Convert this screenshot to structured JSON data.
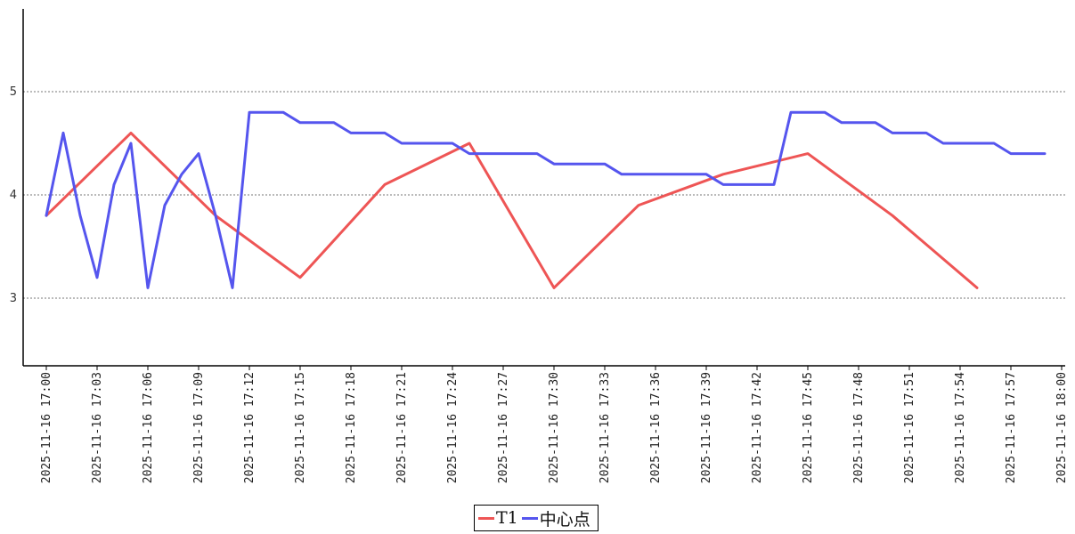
{
  "chart_data": {
    "type": "line",
    "title": "",
    "xlabel": "",
    "ylabel": "",
    "ylim": [
      2.35,
      5.85
    ],
    "yticks": [
      3,
      4,
      5
    ],
    "grid": "horizontal dotted",
    "legend_position": "bottom-center",
    "x_tick_labels": [
      "2025-11-16 17:00",
      "2025-11-16 17:03",
      "2025-11-16 17:06",
      "2025-11-16 17:09",
      "2025-11-16 17:12",
      "2025-11-16 17:15",
      "2025-11-16 17:18",
      "2025-11-16 17:21",
      "2025-11-16 17:24",
      "2025-11-16 17:27",
      "2025-11-16 17:30",
      "2025-11-16 17:33",
      "2025-11-16 17:36",
      "2025-11-16 17:39",
      "2025-11-16 17:42",
      "2025-11-16 17:45",
      "2025-11-16 17:48",
      "2025-11-16 17:51",
      "2025-11-16 17:54",
      "2025-11-16 17:57",
      "2025-11-16 18:00"
    ],
    "series": [
      {
        "name": "T1",
        "color": "#ee5555",
        "points": [
          [
            "2025-11-16 17:00",
            3.8
          ],
          [
            "2025-11-16 17:05",
            4.6
          ],
          [
            "2025-11-16 17:10",
            3.8
          ],
          [
            "2025-11-16 17:15",
            3.2
          ],
          [
            "2025-11-16 17:20",
            4.1
          ],
          [
            "2025-11-16 17:25",
            4.5
          ],
          [
            "2025-11-16 17:30",
            3.1
          ],
          [
            "2025-11-16 17:35",
            3.9
          ],
          [
            "2025-11-16 17:40",
            4.2
          ],
          [
            "2025-11-16 17:45",
            4.4
          ],
          [
            "2025-11-16 17:50",
            3.8
          ],
          [
            "2025-11-16 17:55",
            3.1
          ]
        ]
      },
      {
        "name": "中心点",
        "color": "#5555ee",
        "points": [
          [
            "2025-11-16 17:00",
            3.8
          ],
          [
            "2025-11-16 17:01",
            4.6
          ],
          [
            "2025-11-16 17:02",
            3.8
          ],
          [
            "2025-11-16 17:03",
            3.2
          ],
          [
            "2025-11-16 17:04",
            4.1
          ],
          [
            "2025-11-16 17:05",
            4.5
          ],
          [
            "2025-11-16 17:06",
            3.1
          ],
          [
            "2025-11-16 17:07",
            3.9
          ],
          [
            "2025-11-16 17:08",
            4.2
          ],
          [
            "2025-11-16 17:09",
            4.4
          ],
          [
            "2025-11-16 17:10",
            3.8
          ],
          [
            "2025-11-16 17:11",
            3.1
          ],
          [
            "2025-11-16 17:12",
            4.8
          ],
          [
            "2025-11-16 17:14",
            4.8
          ],
          [
            "2025-11-16 17:15",
            4.7
          ],
          [
            "2025-11-16 17:17",
            4.7
          ],
          [
            "2025-11-16 17:18",
            4.6
          ],
          [
            "2025-11-16 17:20",
            4.6
          ],
          [
            "2025-11-16 17:21",
            4.5
          ],
          [
            "2025-11-16 17:24",
            4.5
          ],
          [
            "2025-11-16 17:25",
            4.4
          ],
          [
            "2025-11-16 17:29",
            4.4
          ],
          [
            "2025-11-16 17:30",
            4.3
          ],
          [
            "2025-11-16 17:33",
            4.3
          ],
          [
            "2025-11-16 17:34",
            4.2
          ],
          [
            "2025-11-16 17:39",
            4.2
          ],
          [
            "2025-11-16 17:40",
            4.1
          ],
          [
            "2025-11-16 17:43",
            4.1
          ],
          [
            "2025-11-16 17:44",
            4.8
          ],
          [
            "2025-11-16 17:46",
            4.8
          ],
          [
            "2025-11-16 17:47",
            4.7
          ],
          [
            "2025-11-16 17:49",
            4.7
          ],
          [
            "2025-11-16 17:50",
            4.6
          ],
          [
            "2025-11-16 17:52",
            4.6
          ],
          [
            "2025-11-16 17:53",
            4.5
          ],
          [
            "2025-11-16 17:56",
            4.5
          ],
          [
            "2025-11-16 17:57",
            4.4
          ],
          [
            "2025-11-16 17:59",
            4.4
          ]
        ]
      }
    ]
  }
}
